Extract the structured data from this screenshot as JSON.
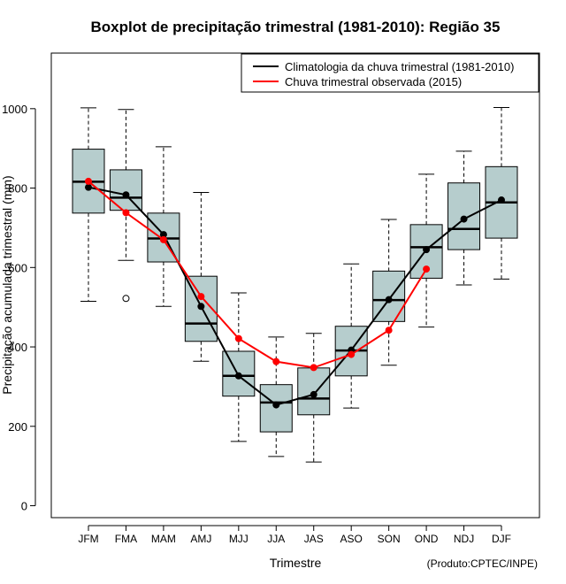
{
  "chart_data": {
    "type": "boxplot",
    "title": "Boxplot de precipitação trimestral (1981-2010): Região 35",
    "xlabel": "Trimestre",
    "ylabel": "Precipitação acumulada trimestral (mm)",
    "credit": "(Produto:CPTEC/INPE)",
    "ylim": [
      -30,
      1140
    ],
    "yticks": [
      0,
      200,
      400,
      600,
      800,
      1000
    ],
    "categories": [
      "JFM",
      "FMA",
      "MAM",
      "AMJ",
      "MJJ",
      "JJA",
      "JAS",
      "ASO",
      "SON",
      "OND",
      "NDJ",
      "DJF"
    ],
    "boxes": [
      {
        "min": 515,
        "q1": 737,
        "median": 816,
        "q3": 898,
        "max": 1002,
        "outliers": []
      },
      {
        "min": 618,
        "q1": 744,
        "median": 776,
        "q3": 846,
        "max": 998,
        "outliers": [
          522
        ]
      },
      {
        "min": 502,
        "q1": 614,
        "median": 673,
        "q3": 737,
        "max": 904,
        "outliers": []
      },
      {
        "min": 364,
        "q1": 414,
        "median": 459,
        "q3": 578,
        "max": 789,
        "outliers": []
      },
      {
        "min": 162,
        "q1": 276,
        "median": 327,
        "q3": 389,
        "max": 536,
        "outliers": []
      },
      {
        "min": 124,
        "q1": 186,
        "median": 260,
        "q3": 305,
        "max": 425,
        "outliers": []
      },
      {
        "min": 110,
        "q1": 229,
        "median": 270,
        "q3": 347,
        "max": 434,
        "outliers": []
      },
      {
        "min": 246,
        "q1": 327,
        "median": 391,
        "q3": 452,
        "max": 609,
        "outliers": []
      },
      {
        "min": 354,
        "q1": 464,
        "median": 518,
        "q3": 591,
        "max": 721,
        "outliers": []
      },
      {
        "min": 450,
        "q1": 573,
        "median": 651,
        "q3": 708,
        "max": 835,
        "outliers": []
      },
      {
        "min": 556,
        "q1": 645,
        "median": 697,
        "q3": 813,
        "max": 893,
        "outliers": []
      },
      {
        "min": 571,
        "q1": 674,
        "median": 764,
        "q3": 854,
        "max": 1003,
        "outliers": []
      }
    ],
    "series": [
      {
        "name": "Climatologia da chuva trimestral (1981-2010)",
        "color": "#000000",
        "values": [
          802,
          783,
          683,
          502,
          327,
          254,
          280,
          392,
          519,
          645,
          722,
          770
        ]
      },
      {
        "name": "Chuva trimestral observada (2015)",
        "color": "#ff0000",
        "values": [
          817,
          738,
          670,
          527,
          421,
          363,
          348,
          381,
          442,
          596,
          null,
          null
        ]
      }
    ],
    "legend_position": "top-right",
    "box_fill": "#b6cdcd"
  }
}
